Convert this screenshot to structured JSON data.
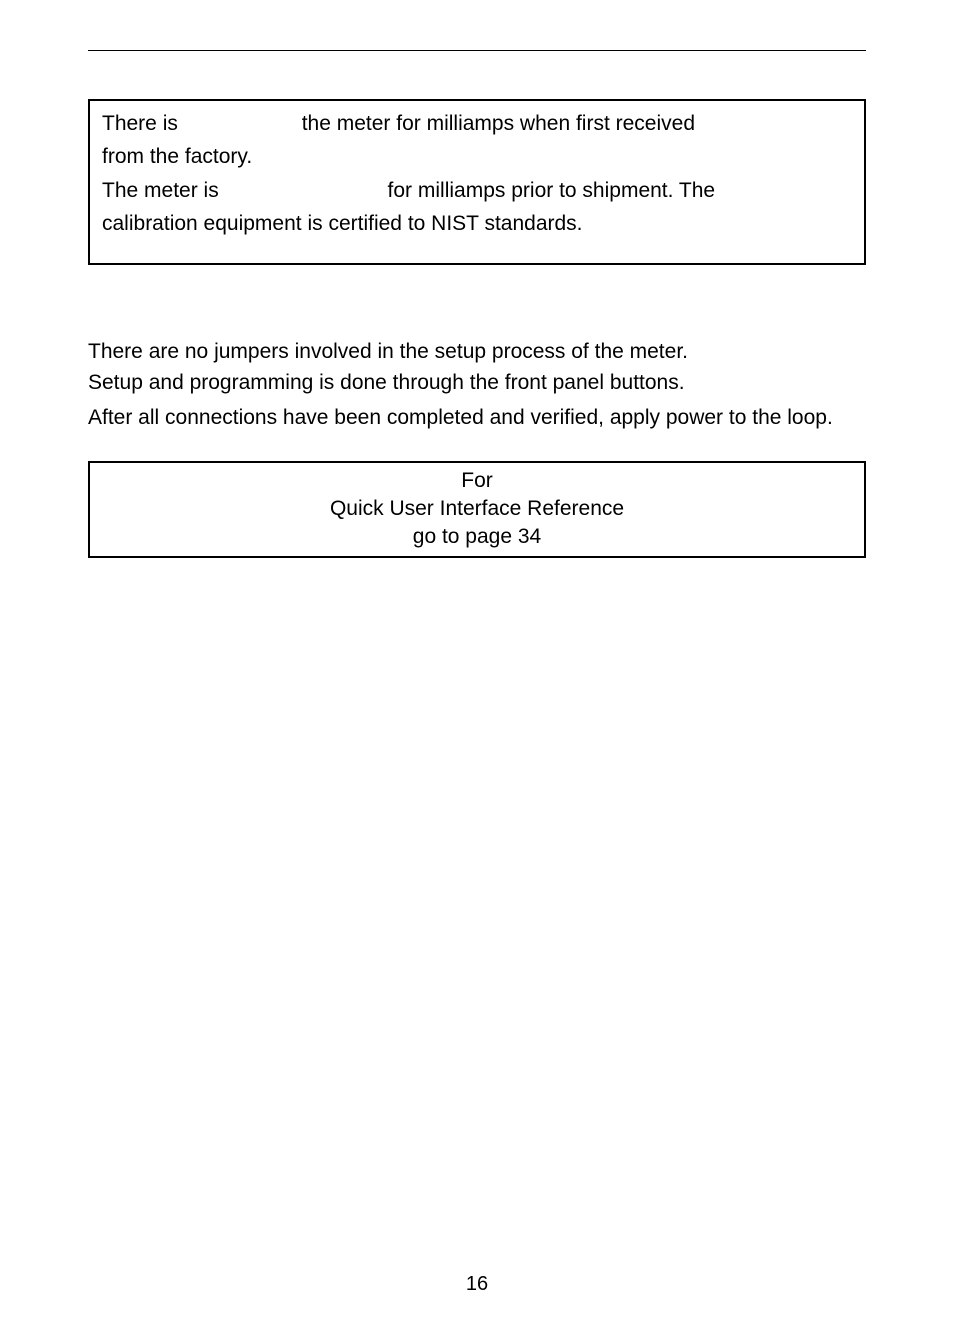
{
  "box1": {
    "l1a": "There is",
    "l1b": "the meter for milliamps when first received",
    "l2": "from the factory.",
    "l3a": "The meter is",
    "l3b": "for milliamps prior to shipment. The",
    "l4": "calibration equipment is certified to NIST standards."
  },
  "body": {
    "p1": "There are no jumpers involved in the setup process of the meter.",
    "p2": "Setup and programming is done through the front panel buttons.",
    "p3": "After all connections have been completed and verified, apply power to the loop."
  },
  "box2": {
    "l1": "For",
    "l2": "Quick User Interface Reference",
    "l3": "go to page 34"
  },
  "pageNumber": "16"
}
